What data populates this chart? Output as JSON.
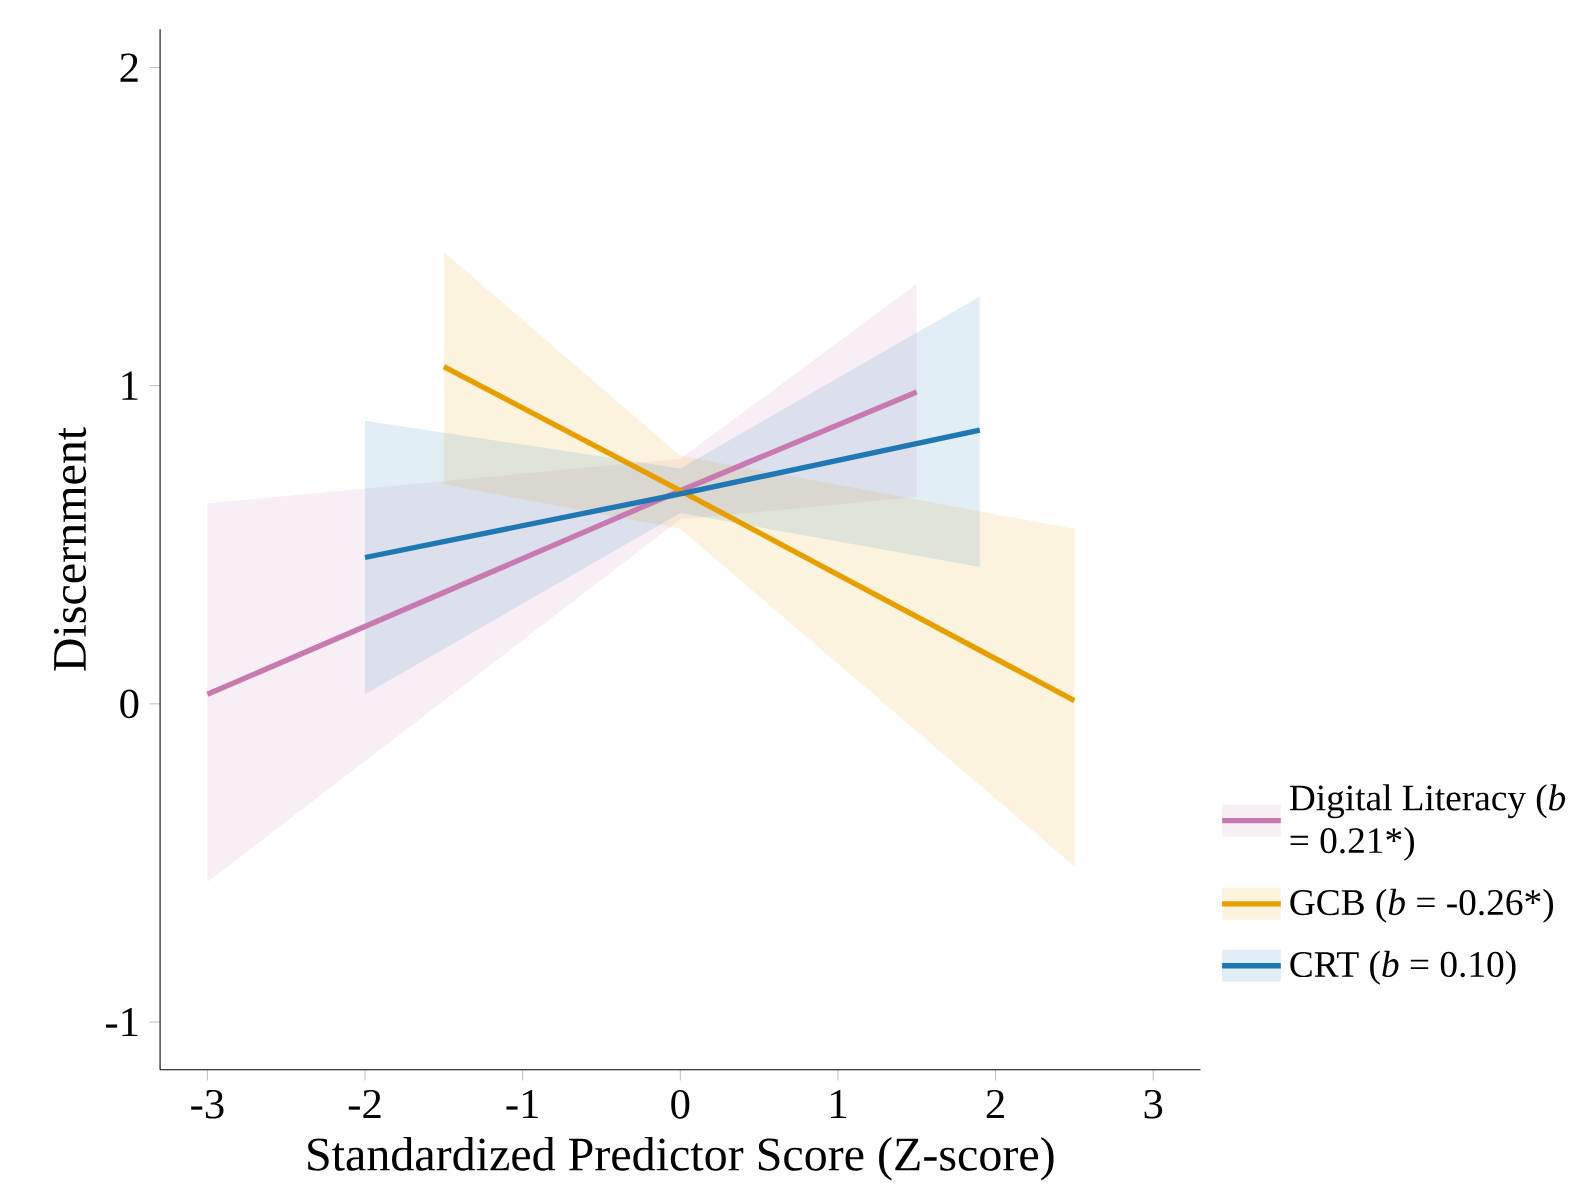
{
  "chart_data": {
    "type": "line",
    "xlabel": "Standardized Predictor Score (Z-score)",
    "ylabel": "Discernment",
    "xlim": [
      -3.3,
      3.3
    ],
    "ylim": [
      -1.15,
      2.12
    ],
    "xticks": [
      -3,
      -2,
      -1,
      0,
      1,
      2,
      3
    ],
    "yticks": [
      -1,
      0,
      1,
      2
    ],
    "grid": false,
    "legend": "right",
    "marker": "none",
    "line_style": "solid",
    "series": [
      {
        "name": "Digital Literacy (*b* = 0.21*)",
        "color": "#c879b0",
        "x": [
          -3,
          0,
          1.5
        ],
        "values": [
          0.03,
          0.67,
          0.98
        ],
        "lower": [
          -0.56,
          0.58,
          0.65
        ],
        "upper": [
          0.63,
          0.77,
          1.32
        ]
      },
      {
        "name": "GCB (*b* = -0.26*)",
        "color": "#e69f00",
        "x": [
          -1.5,
          0,
          2.5
        ],
        "values": [
          1.06,
          0.67,
          0.01
        ],
        "lower": [
          0.69,
          0.55,
          -0.51
        ],
        "upper": [
          1.42,
          0.78,
          0.55
        ]
      },
      {
        "name": "CRT (*b* = 0.10)",
        "color": "#1f78b4",
        "x": [
          -2,
          0,
          1.9
        ],
        "values": [
          0.46,
          0.66,
          0.86
        ],
        "lower": [
          0.03,
          0.6,
          0.43
        ],
        "upper": [
          0.89,
          0.74,
          1.28
        ]
      }
    ]
  }
}
